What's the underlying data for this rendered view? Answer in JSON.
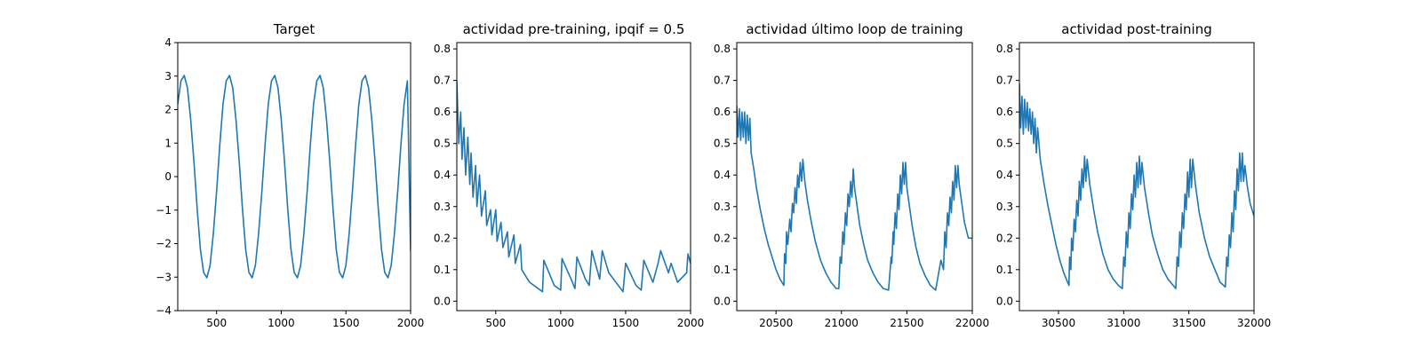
{
  "colors": {
    "line": "#1f77b4"
  },
  "chart_data": [
    {
      "type": "line",
      "title": "Target",
      "xlabel": "",
      "ylabel": "",
      "xlim": [
        200,
        2000
      ],
      "ylim": [
        -4,
        4
      ],
      "xticks": [
        500,
        1000,
        1500,
        2000
      ],
      "yticks": [
        -4,
        -3,
        -2,
        -1,
        0,
        1,
        2,
        3,
        4
      ],
      "series": [
        {
          "x": [
            200,
            225,
            250,
            275,
            300,
            325,
            350,
            375,
            400,
            425,
            450,
            475,
            500,
            525,
            550,
            575,
            600,
            625,
            650,
            675,
            700,
            725,
            750,
            775,
            800,
            825,
            850,
            875,
            900,
            925,
            950,
            975,
            1000,
            1025,
            1050,
            1075,
            1100,
            1125,
            1150,
            1175,
            1200,
            1225,
            1250,
            1275,
            1300,
            1325,
            1350,
            1375,
            1400,
            1425,
            1450,
            1475,
            1500,
            1525,
            1550,
            1575,
            1600,
            1625,
            1650,
            1675,
            1700,
            1725,
            1750,
            1775,
            1800,
            1825,
            1850,
            1875,
            1900,
            1925,
            1950,
            1975,
            2000
          ],
          "y": [
            2.17,
            2.86,
            3.02,
            2.65,
            1.7,
            0.46,
            -0.95,
            -2.17,
            -2.86,
            -3.02,
            -2.65,
            -1.7,
            -0.46,
            0.95,
            2.17,
            2.86,
            3.02,
            2.65,
            1.7,
            0.46,
            -0.95,
            -2.17,
            -2.86,
            -3.02,
            -2.65,
            -1.7,
            -0.46,
            0.95,
            2.17,
            2.86,
            3.02,
            2.65,
            1.7,
            0.46,
            -0.95,
            -2.17,
            -2.86,
            -3.02,
            -2.65,
            -1.7,
            -0.46,
            0.95,
            2.17,
            2.86,
            3.02,
            2.65,
            1.7,
            0.46,
            -0.95,
            -2.17,
            -2.86,
            -3.02,
            -2.65,
            -1.7,
            -0.46,
            0.95,
            2.17,
            2.86,
            3.02,
            2.65,
            1.7,
            0.46,
            -0.95,
            -2.17,
            -2.86,
            -3.02,
            -2.65,
            -1.7,
            -0.46,
            0.95,
            2.17,
            2.86,
            -2.2
          ]
        }
      ]
    },
    {
      "type": "line",
      "title": "actividad pre-training, ipqif = 0.5",
      "xlabel": "",
      "ylabel": "",
      "xlim": [
        200,
        2000
      ],
      "ylim": [
        -0.03,
        0.82
      ],
      "xticks": [
        500,
        1000,
        1500,
        2000
      ],
      "yticks": [
        0.0,
        0.1,
        0.2,
        0.3,
        0.4,
        0.5,
        0.6,
        0.7,
        0.8
      ],
      "series": [
        {
          "x": [
            200,
            215,
            230,
            240,
            255,
            268,
            285,
            300,
            310,
            325,
            345,
            355,
            375,
            390,
            420,
            430,
            460,
            470,
            500,
            510,
            540,
            555,
            590,
            600,
            640,
            650,
            690,
            700,
            760,
            860,
            870,
            950,
            1000,
            1010,
            1080,
            1110,
            1125,
            1190,
            1220,
            1240,
            1300,
            1320,
            1370,
            1480,
            1500,
            1580,
            1620,
            1640,
            1710,
            1750,
            1770,
            1830,
            1850,
            1900,
            1970,
            1980,
            2000
          ],
          "y": [
            0.7,
            0.5,
            0.6,
            0.45,
            0.55,
            0.4,
            0.52,
            0.37,
            0.47,
            0.33,
            0.43,
            0.3,
            0.4,
            0.27,
            0.35,
            0.24,
            0.29,
            0.21,
            0.29,
            0.19,
            0.25,
            0.17,
            0.22,
            0.14,
            0.21,
            0.12,
            0.18,
            0.1,
            0.06,
            0.03,
            0.13,
            0.05,
            0.035,
            0.135,
            0.07,
            0.04,
            0.14,
            0.07,
            0.05,
            0.16,
            0.07,
            0.16,
            0.09,
            0.03,
            0.12,
            0.05,
            0.035,
            0.13,
            0.06,
            0.12,
            0.16,
            0.09,
            0.12,
            0.06,
            0.09,
            0.15,
            0.12
          ]
        }
      ]
    },
    {
      "type": "line",
      "title": "actividad último loop de training",
      "xlabel": "",
      "ylabel": "",
      "xlim": [
        20200,
        22000
      ],
      "ylim": [
        -0.03,
        0.82
      ],
      "xticks": [
        20500,
        21000,
        21500,
        22000
      ],
      "yticks": [
        0.0,
        0.1,
        0.2,
        0.3,
        0.4,
        0.5,
        0.6,
        0.7,
        0.8
      ],
      "series": [
        {
          "x": [
            20200,
            20210,
            20220,
            20230,
            20240,
            20250,
            20260,
            20270,
            20280,
            20290,
            20300,
            20310,
            20330,
            20350,
            20380,
            20410,
            20440,
            20470,
            20500,
            20530,
            20560,
            20565,
            20575,
            20580,
            20590,
            20605,
            20615,
            20625,
            20635,
            20645,
            20655,
            20665,
            20675,
            20685,
            20695,
            20705,
            20720,
            20740,
            20770,
            20800,
            20840,
            20880,
            20920,
            20960,
            20980,
            20990,
            21000,
            21010,
            21020,
            21030,
            21040,
            21050,
            21060,
            21070,
            21080,
            21090,
            21100,
            21120,
            21140,
            21170,
            21200,
            21240,
            21280,
            21320,
            21360,
            21380,
            21385,
            21395,
            21400,
            21410,
            21420,
            21430,
            21440,
            21450,
            21460,
            21470,
            21480,
            21490,
            21500,
            21520,
            21540,
            21570,
            21600,
            21640,
            21680,
            21720,
            21760,
            21780,
            21790,
            21800,
            21810,
            21820,
            21830,
            21840,
            21850,
            21860,
            21870,
            21880,
            21890,
            21900,
            21920,
            21940,
            21970,
            22000
          ],
          "y": [
            0.62,
            0.52,
            0.61,
            0.51,
            0.6,
            0.52,
            0.6,
            0.5,
            0.59,
            0.51,
            0.58,
            0.47,
            0.42,
            0.36,
            0.29,
            0.23,
            0.18,
            0.14,
            0.1,
            0.07,
            0.05,
            0.15,
            0.12,
            0.22,
            0.18,
            0.26,
            0.22,
            0.31,
            0.28,
            0.36,
            0.31,
            0.4,
            0.36,
            0.44,
            0.38,
            0.45,
            0.38,
            0.32,
            0.25,
            0.19,
            0.13,
            0.09,
            0.06,
            0.04,
            0.04,
            0.14,
            0.12,
            0.22,
            0.18,
            0.28,
            0.24,
            0.34,
            0.3,
            0.38,
            0.33,
            0.42,
            0.36,
            0.3,
            0.24,
            0.18,
            0.13,
            0.09,
            0.06,
            0.04,
            0.035,
            0.14,
            0.12,
            0.22,
            0.18,
            0.28,
            0.23,
            0.34,
            0.29,
            0.4,
            0.34,
            0.44,
            0.37,
            0.44,
            0.36,
            0.3,
            0.24,
            0.17,
            0.12,
            0.08,
            0.05,
            0.035,
            0.13,
            0.1,
            0.22,
            0.17,
            0.28,
            0.24,
            0.33,
            0.28,
            0.38,
            0.32,
            0.43,
            0.36,
            0.43,
            0.37,
            0.31,
            0.25,
            0.2,
            0.2
          ]
        }
      ]
    },
    {
      "type": "line",
      "title": "actividad post-training",
      "xlabel": "",
      "ylabel": "",
      "xlim": [
        30200,
        32000
      ],
      "ylim": [
        -0.03,
        0.82
      ],
      "xticks": [
        30500,
        31000,
        31500,
        32000
      ],
      "yticks": [
        0.0,
        0.1,
        0.2,
        0.3,
        0.4,
        0.5,
        0.6,
        0.7,
        0.8
      ],
      "series": [
        {
          "x": [
            30200,
            30210,
            30220,
            30230,
            30240,
            30250,
            30260,
            30270,
            30280,
            30290,
            30300,
            30310,
            30320,
            30330,
            30340,
            30360,
            30390,
            30420,
            30450,
            30480,
            30510,
            30540,
            30580,
            30585,
            30595,
            30600,
            30610,
            30620,
            30630,
            30640,
            30650,
            30660,
            30670,
            30680,
            30690,
            30700,
            30710,
            30720,
            30740,
            30770,
            30800,
            30840,
            30880,
            30920,
            30960,
            30990,
            31000,
            31010,
            31020,
            31030,
            31040,
            31050,
            31060,
            31070,
            31080,
            31090,
            31100,
            31110,
            31120,
            31130,
            31140,
            31160,
            31190,
            31220,
            31260,
            31300,
            31340,
            31380,
            31400,
            31410,
            31420,
            31430,
            31440,
            31450,
            31460,
            31470,
            31480,
            31490,
            31500,
            31510,
            31520,
            31530,
            31550,
            31580,
            31620,
            31660,
            31700,
            31740,
            31780,
            31790,
            31800,
            31810,
            31820,
            31830,
            31840,
            31850,
            31860,
            31870,
            31880,
            31890,
            31900,
            31910,
            31920,
            31930,
            31950,
            31970,
            32000
          ],
          "y": [
            0.69,
            0.55,
            0.65,
            0.53,
            0.64,
            0.55,
            0.63,
            0.54,
            0.61,
            0.53,
            0.6,
            0.5,
            0.58,
            0.47,
            0.55,
            0.45,
            0.37,
            0.3,
            0.24,
            0.18,
            0.13,
            0.09,
            0.05,
            0.14,
            0.1,
            0.2,
            0.16,
            0.26,
            0.22,
            0.32,
            0.27,
            0.38,
            0.32,
            0.42,
            0.36,
            0.46,
            0.38,
            0.45,
            0.37,
            0.29,
            0.22,
            0.15,
            0.1,
            0.07,
            0.05,
            0.04,
            0.14,
            0.11,
            0.22,
            0.17,
            0.28,
            0.23,
            0.34,
            0.29,
            0.4,
            0.33,
            0.44,
            0.36,
            0.46,
            0.37,
            0.44,
            0.36,
            0.28,
            0.21,
            0.15,
            0.1,
            0.07,
            0.05,
            0.04,
            0.14,
            0.11,
            0.22,
            0.17,
            0.28,
            0.23,
            0.34,
            0.29,
            0.41,
            0.33,
            0.45,
            0.36,
            0.45,
            0.37,
            0.28,
            0.2,
            0.14,
            0.1,
            0.06,
            0.045,
            0.14,
            0.11,
            0.21,
            0.17,
            0.28,
            0.22,
            0.35,
            0.29,
            0.42,
            0.35,
            0.47,
            0.38,
            0.47,
            0.38,
            0.43,
            0.36,
            0.31,
            0.27
          ]
        }
      ]
    }
  ]
}
